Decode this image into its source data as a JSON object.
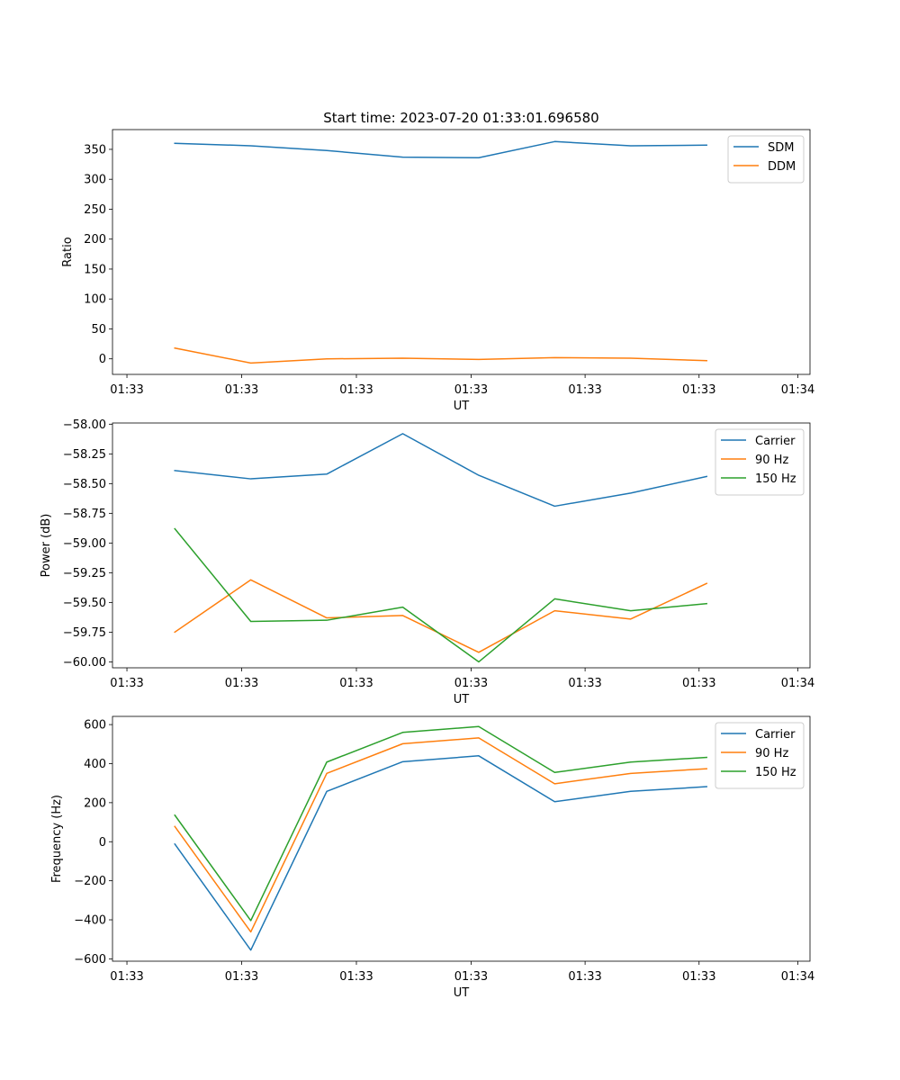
{
  "figure_title": "Start time: 2023-07-20 01:33:01.696580",
  "colors": {
    "c0": "#1f77b4",
    "c1": "#ff7f0e",
    "c2": "#2ca02c",
    "axis": "#000000"
  },
  "chart_data": [
    {
      "type": "line",
      "title": "Start time: 2023-07-20 01:33:01.696580",
      "xlabel": "UT",
      "ylabel": "Ratio",
      "x": [
        1,
        2,
        3,
        4,
        5,
        6,
        7,
        8
      ],
      "xlim": [
        0.18,
        9.36
      ],
      "xticks": [
        0.37,
        1.88,
        3.39,
        4.9,
        6.4,
        7.9,
        9.2
      ],
      "xtick_labels": [
        "01:33",
        "01:33",
        "01:33",
        "01:33",
        "01:33",
        "01:33",
        "01:34"
      ],
      "ylim": [
        -26,
        383
      ],
      "yticks": [
        0,
        50,
        100,
        150,
        200,
        250,
        300,
        350
      ],
      "ytick_labels": [
        "0",
        "50",
        "100",
        "150",
        "200",
        "250",
        "300",
        "350"
      ],
      "legend_loc": "upper right",
      "series": [
        {
          "name": "SDM",
          "color": "#1f77b4",
          "values": [
            360,
            356,
            348,
            337,
            336,
            363,
            356,
            357
          ]
        },
        {
          "name": "DDM",
          "color": "#ff7f0e",
          "values": [
            18,
            -7,
            0,
            1,
            -1,
            2,
            1,
            -3
          ]
        }
      ]
    },
    {
      "type": "line",
      "title": "",
      "xlabel": "UT",
      "ylabel": "Power (dB)",
      "x": [
        1,
        2,
        3,
        4,
        5,
        6,
        7,
        8
      ],
      "xlim": [
        0.18,
        9.36
      ],
      "xticks": [
        0.37,
        1.88,
        3.39,
        4.9,
        6.4,
        7.9,
        9.2
      ],
      "xtick_labels": [
        "01:33",
        "01:33",
        "01:33",
        "01:33",
        "01:33",
        "01:33",
        "01:34"
      ],
      "ylim": [
        -60.05,
        -57.99
      ],
      "yticks": [
        -60.0,
        -59.75,
        -59.5,
        -59.25,
        -59.0,
        -58.75,
        -58.5,
        -58.25,
        -58.0
      ],
      "ytick_labels": [
        "−60.00",
        "−59.75",
        "−59.50",
        "−59.25",
        "−59.00",
        "−58.75",
        "−58.50",
        "−58.25",
        "−58.00"
      ],
      "legend_loc": "upper right",
      "series": [
        {
          "name": "Carrier",
          "color": "#1f77b4",
          "values": [
            -58.39,
            -58.46,
            -58.42,
            -58.08,
            -58.43,
            -58.69,
            -58.58,
            -58.44
          ]
        },
        {
          "name": "90 Hz",
          "color": "#ff7f0e",
          "values": [
            -59.75,
            -59.31,
            -59.63,
            -59.61,
            -59.92,
            -59.57,
            -59.64,
            -59.34
          ]
        },
        {
          "name": "150 Hz",
          "color": "#2ca02c",
          "values": [
            -58.88,
            -59.66,
            -59.65,
            -59.54,
            -60.0,
            -59.47,
            -59.57,
            -59.51
          ]
        }
      ]
    },
    {
      "type": "line",
      "title": "",
      "xlabel": "UT",
      "ylabel": "Frequency (Hz)",
      "x": [
        1,
        2,
        3,
        4,
        5,
        6,
        7,
        8
      ],
      "xlim": [
        0.18,
        9.36
      ],
      "xticks": [
        0.37,
        1.88,
        3.39,
        4.9,
        6.4,
        7.9,
        9.2
      ],
      "xtick_labels": [
        "01:33",
        "01:33",
        "01:33",
        "01:33",
        "01:33",
        "01:33",
        "01:34"
      ],
      "ylim": [
        -612,
        642
      ],
      "yticks": [
        -600,
        -400,
        -200,
        0,
        200,
        400,
        600
      ],
      "ytick_labels": [
        "−600",
        "−400",
        "−200",
        "0",
        "200",
        "400",
        "600"
      ],
      "legend_loc": "upper right",
      "series": [
        {
          "name": "Carrier",
          "color": "#1f77b4",
          "values": [
            -12,
            -555,
            258,
            410,
            440,
            205,
            258,
            282
          ]
        },
        {
          "name": "90 Hz",
          "color": "#ff7f0e",
          "values": [
            78,
            -462,
            350,
            502,
            532,
            297,
            350,
            374
          ]
        },
        {
          "name": "150 Hz",
          "color": "#2ca02c",
          "values": [
            136,
            -404,
            408,
            560,
            590,
            355,
            408,
            432
          ]
        }
      ]
    }
  ]
}
